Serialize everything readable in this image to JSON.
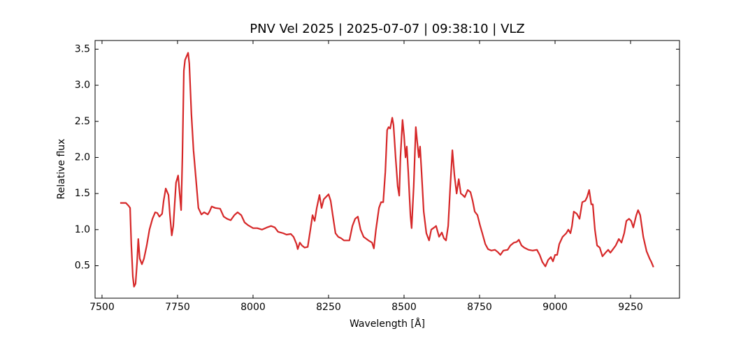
{
  "chart_data": {
    "type": "line",
    "title": "PNV Vel 2025 | 2025-07-07 | 09:38:10 | VLZ",
    "xlabel": "Wavelength [Å]",
    "ylabel": "Relative flux",
    "xlim": [
      7477,
      9412
    ],
    "ylim": [
      0.05,
      3.62
    ],
    "xticks": [
      7500,
      7750,
      8000,
      8250,
      8500,
      8750,
      9000,
      9250
    ],
    "yticks": [
      0.5,
      {
        "value": 1.0,
        "label": "1.0"
      },
      1.5,
      {
        "value": 2.0,
        "label": "2.0"
      },
      2.5,
      {
        "value": 3.0,
        "label": "3.0"
      },
      3.5
    ],
    "series": [
      {
        "color": "#d62728",
        "x": [
          7560,
          7579,
          7588,
          7593,
          7597,
          7602,
          7606,
          7611,
          7616,
          7620,
          7625,
          7632,
          7639,
          7648,
          7657,
          7667,
          7676,
          7683,
          7690,
          7699,
          7704,
          7711,
          7720,
          7725,
          7731,
          7736,
          7745,
          7752,
          7757,
          7762,
          7766,
          7771,
          7775,
          7780,
          7785,
          7789,
          7796,
          7803,
          7813,
          7819,
          7829,
          7838,
          7850,
          7856,
          7863,
          7875,
          7891,
          7903,
          7914,
          7926,
          7938,
          7949,
          7961,
          7972,
          7984,
          8000,
          8014,
          8030,
          8046,
          8060,
          8072,
          8083,
          8100,
          8111,
          8125,
          8134,
          8144,
          8148,
          8155,
          8162,
          8171,
          8181,
          8190,
          8197,
          8204,
          8211,
          8220,
          8227,
          8234,
          8241,
          8250,
          8257,
          8264,
          8273,
          8282,
          8292,
          8301,
          8319,
          8329,
          8338,
          8347,
          8356,
          8366,
          8382,
          8394,
          8400,
          8407,
          8417,
          8424,
          8431,
          8438,
          8444,
          8449,
          8454,
          8461,
          8465,
          8472,
          8479,
          8484,
          8488,
          8495,
          8500,
          8505,
          8509,
          8514,
          8521,
          8525,
          8532,
          8539,
          8544,
          8549,
          8553,
          8558,
          8565,
          8574,
          8583,
          8590,
          8600,
          8606,
          8616,
          8625,
          8632,
          8639,
          8646,
          8653,
          8660,
          8667,
          8674,
          8681,
          8688,
          8694,
          8701,
          8711,
          8720,
          8727,
          8734,
          8743,
          8752,
          8759,
          8769,
          8778,
          8789,
          8801,
          8810,
          8819,
          8829,
          8843,
          8852,
          8864,
          8873,
          8880,
          8889,
          8898,
          8912,
          8926,
          8940,
          8949,
          8958,
          8968,
          8977,
          8986,
          8993,
          9000,
          9007,
          9014,
          9025,
          9037,
          9044,
          9051,
          9056,
          9062,
          9072,
          9081,
          9090,
          9100,
          9106,
          9113,
          9120,
          9125,
          9132,
          9139,
          9148,
          9157,
          9167,
          9176,
          9183,
          9192,
          9201,
          9211,
          9220,
          9229,
          9236,
          9245,
          9252,
          9259,
          9269,
          9275,
          9282,
          9292,
          9303,
          9313,
          9319,
          9326
        ],
        "values": [
          1.37,
          1.37,
          1.33,
          1.3,
          0.8,
          0.35,
          0.21,
          0.25,
          0.55,
          0.87,
          0.6,
          0.52,
          0.6,
          0.78,
          1.0,
          1.15,
          1.24,
          1.23,
          1.18,
          1.22,
          1.4,
          1.57,
          1.48,
          1.2,
          0.92,
          1.05,
          1.65,
          1.75,
          1.5,
          1.27,
          2.0,
          3.2,
          3.35,
          3.4,
          3.45,
          3.3,
          2.6,
          2.1,
          1.6,
          1.3,
          1.21,
          1.24,
          1.21,
          1.25,
          1.32,
          1.3,
          1.29,
          1.18,
          1.15,
          1.13,
          1.2,
          1.24,
          1.2,
          1.1,
          1.06,
          1.02,
          1.02,
          1.0,
          1.03,
          1.05,
          1.03,
          0.97,
          0.95,
          0.93,
          0.94,
          0.9,
          0.8,
          0.73,
          0.82,
          0.78,
          0.75,
          0.76,
          1.0,
          1.2,
          1.12,
          1.3,
          1.48,
          1.3,
          1.42,
          1.45,
          1.49,
          1.4,
          1.2,
          0.95,
          0.9,
          0.88,
          0.85,
          0.85,
          1.05,
          1.15,
          1.18,
          1.0,
          0.9,
          0.85,
          0.82,
          0.74,
          1.0,
          1.3,
          1.38,
          1.38,
          1.8,
          2.38,
          2.42,
          2.4,
          2.55,
          2.45,
          2.0,
          1.6,
          1.47,
          2.0,
          2.52,
          2.3,
          2.0,
          2.15,
          1.8,
          1.2,
          1.02,
          1.6,
          2.42,
          2.2,
          2.0,
          2.15,
          1.8,
          1.25,
          0.95,
          0.85,
          1.0,
          1.03,
          1.05,
          0.9,
          0.96,
          0.88,
          0.85,
          1.05,
          1.6,
          2.1,
          1.75,
          1.5,
          1.7,
          1.5,
          1.48,
          1.45,
          1.55,
          1.52,
          1.4,
          1.25,
          1.2,
          1.05,
          0.95,
          0.8,
          0.73,
          0.71,
          0.72,
          0.69,
          0.65,
          0.71,
          0.72,
          0.78,
          0.82,
          0.83,
          0.86,
          0.78,
          0.75,
          0.72,
          0.71,
          0.72,
          0.65,
          0.55,
          0.49,
          0.58,
          0.62,
          0.56,
          0.65,
          0.65,
          0.8,
          0.9,
          0.95,
          1.0,
          0.95,
          1.05,
          1.25,
          1.22,
          1.15,
          1.38,
          1.4,
          1.45,
          1.55,
          1.35,
          1.35,
          1.0,
          0.78,
          0.75,
          0.63,
          0.68,
          0.72,
          0.68,
          0.73,
          0.78,
          0.87,
          0.82,
          0.95,
          1.12,
          1.15,
          1.12,
          1.03,
          1.2,
          1.27,
          1.2,
          0.9,
          0.7,
          0.6,
          0.55,
          0.48
        ]
      }
    ]
  }
}
